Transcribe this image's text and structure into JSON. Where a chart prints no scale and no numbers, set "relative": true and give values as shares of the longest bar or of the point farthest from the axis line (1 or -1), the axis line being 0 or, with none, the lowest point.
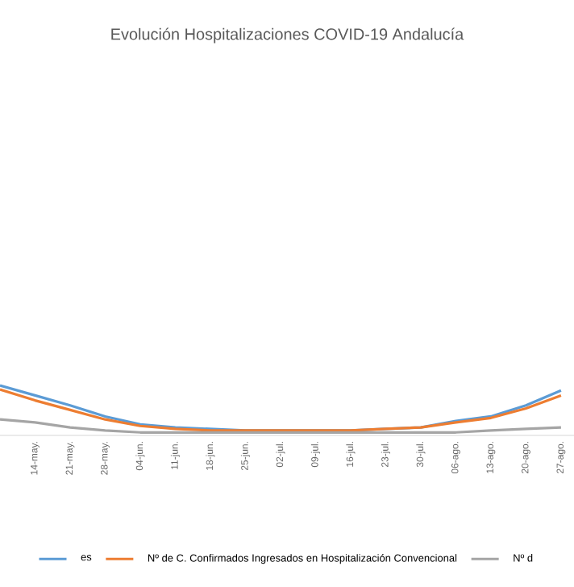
{
  "chart_data": {
    "type": "line",
    "title": "Evolución Hospitalizaciones COVID-19 Andalucía",
    "categories": [
      null,
      "14-may.",
      "21-may.",
      "28-may.",
      "04-jun.",
      "11-jun.",
      "18-jun.",
      "25-jun.",
      "02-jul.",
      "09-jul.",
      "16-jul.",
      "23-jul.",
      "30-jul.",
      "06-ago.",
      "13-ago.",
      "20-ago.",
      "27-ago."
    ],
    "relative": true,
    "legend": "bottom",
    "marker": "none",
    "line_style": "solid",
    "series": [
      {
        "name": "es",
        "color": "#5b9bd5",
        "values": [
          1.0,
          0.8,
          0.6,
          0.38,
          0.22,
          0.16,
          0.13,
          0.1,
          0.1,
          0.1,
          0.1,
          0.13,
          0.16,
          0.29,
          0.38,
          0.6,
          0.9
        ]
      },
      {
        "name": "Nº de C. Confirmados Ingresados en Hospitalización Convencional",
        "color": "#ed7d31",
        "values": [
          0.92,
          0.7,
          0.51,
          0.32,
          0.19,
          0.13,
          0.1,
          0.1,
          0.1,
          0.1,
          0.1,
          0.13,
          0.16,
          0.26,
          0.35,
          0.54,
          0.8
        ]
      },
      {
        "name": "Nº d",
        "color": "#a5a5a5",
        "values": [
          0.32,
          0.26,
          0.16,
          0.1,
          0.06,
          0.06,
          0.06,
          0.06,
          0.06,
          0.06,
          0.06,
          0.06,
          0.06,
          0.06,
          0.1,
          0.13,
          0.16
        ]
      }
    ]
  }
}
